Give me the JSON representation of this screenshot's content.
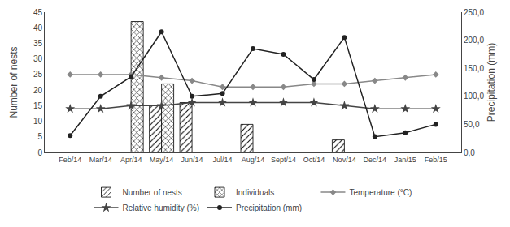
{
  "chart_data": {
    "type": "bar",
    "categories": [
      "Feb/14",
      "Mar/14",
      "Apr/14",
      "May/14",
      "Jun/14",
      "Jul/14",
      "Aug/14",
      "Sept/14",
      "Oct/14",
      "Nov/14",
      "Dec/14",
      "Jan/15",
      "Feb/15"
    ],
    "series": [
      {
        "name": "Number of nests",
        "type": "bar",
        "color": "#ffffff",
        "marker": "diagonal",
        "values": [
          0,
          0,
          0,
          15,
          16,
          0,
          9,
          0,
          0,
          4,
          0,
          0,
          0
        ]
      },
      {
        "name": "Individuals",
        "type": "bar",
        "color": "#ffffff",
        "marker": "cross",
        "values": [
          0,
          0,
          42,
          22,
          0,
          0,
          0,
          0,
          0,
          0,
          0,
          0,
          0
        ]
      },
      {
        "name": "Temperature (°C)",
        "type": "line",
        "color": "#888888",
        "marker": "diamond",
        "values": [
          25,
          25,
          25,
          24,
          23,
          21,
          21,
          21,
          22,
          22,
          23,
          24,
          25
        ]
      },
      {
        "name": "Relative humidity (%)",
        "type": "line",
        "color": "#444444",
        "marker": "star",
        "values": [
          14,
          14,
          15,
          15,
          16,
          16,
          16,
          16,
          16,
          15,
          14,
          14,
          14
        ]
      },
      {
        "name": "Precipitation (mm)",
        "type": "line",
        "color": "#222222",
        "marker": "circle",
        "axis": "y2",
        "values": [
          30,
          100,
          135,
          215,
          100,
          105,
          185,
          175,
          130,
          205,
          28,
          35,
          50
        ]
      }
    ],
    "ylabel": "Number of nests",
    "y2label": "Precipitation (mm)",
    "ylim": [
      0,
      45
    ],
    "yticks": [
      0,
      5,
      10,
      15,
      20,
      25,
      30,
      35,
      40,
      45
    ],
    "y2lim": [
      0,
      250
    ],
    "y2ticks": [
      {
        "value": 0,
        "label": "0,0"
      },
      {
        "value": 50,
        "label": "50,0"
      },
      {
        "value": 100,
        "label": "100,0"
      },
      {
        "value": 150,
        "label": "150,0"
      },
      {
        "value": 200,
        "label": "200,0"
      },
      {
        "value": 250,
        "label": "250,0"
      }
    ],
    "grid": false,
    "legend": "bottom"
  }
}
